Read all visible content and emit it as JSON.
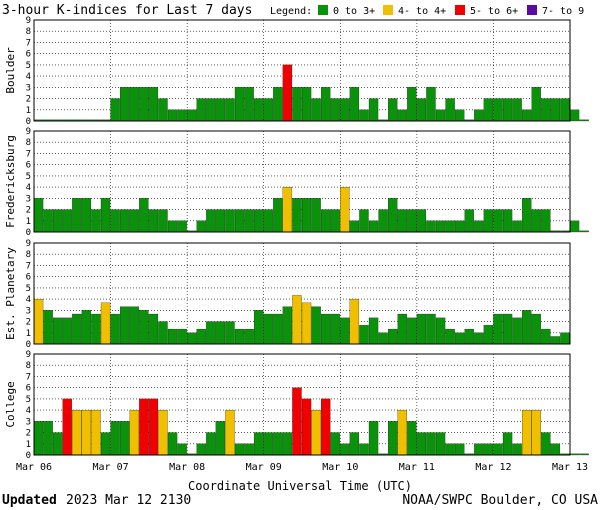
{
  "title": "3-hour K-indices for Last 7 days",
  "legend": {
    "label": "Legend:",
    "items": [
      {
        "label": "0 to 3+",
        "color": "#0A920A"
      },
      {
        "label": "4- to 4+",
        "color": "#F0C000"
      },
      {
        "label": "5- to 6+",
        "color": "#F00000"
      },
      {
        "label": "7- to 9",
        "color": "#5A0AA0"
      }
    ]
  },
  "footer": {
    "updated_label": "Updated",
    "updated_value": "2023 Mar 12 2130",
    "credit": "NOAA/SWPC Boulder, CO USA"
  },
  "chart_data": {
    "type": "bar",
    "xlabel": "Coordinate Universal Time (UTC)",
    "x_ticks": [
      "Mar 06",
      "Mar 07",
      "Mar 08",
      "Mar 09",
      "Mar 10",
      "Mar 11",
      "Mar 12",
      "Mar 13"
    ],
    "ylim": [
      0,
      9
    ],
    "y_ticks": [
      "0",
      "1",
      "2",
      "3",
      "4",
      "5",
      "6",
      "7",
      "8",
      "9"
    ],
    "grid": true,
    "panels": [
      {
        "name": "Boulder",
        "values": [
          0,
          0,
          0,
          0,
          0,
          0,
          0,
          0,
          2,
          3,
          3,
          3,
          3,
          2,
          1,
          1,
          1,
          2,
          2,
          2,
          2,
          3,
          3,
          2,
          2,
          3,
          5,
          3,
          3,
          2,
          3,
          2,
          2,
          3,
          1,
          2,
          0,
          2,
          1,
          3,
          2,
          3,
          1,
          2,
          1,
          0,
          1,
          2,
          2,
          2,
          2,
          1,
          3,
          2,
          2,
          2,
          1,
          0
        ]
      },
      {
        "name": "Fredericksburg",
        "values": [
          3,
          2,
          2,
          2,
          3,
          3,
          2,
          3,
          2,
          2,
          2,
          3,
          2,
          2,
          1,
          1,
          0,
          1,
          2,
          2,
          2,
          2,
          2,
          2,
          2,
          3,
          4,
          3,
          3,
          3,
          2,
          2,
          4,
          1,
          2,
          1,
          2,
          3,
          2,
          2,
          2,
          1,
          1,
          1,
          1,
          2,
          1,
          2,
          2,
          2,
          1,
          3,
          2,
          2,
          0,
          0,
          1,
          0
        ]
      },
      {
        "name": "Est. Planetary",
        "values": [
          4,
          3,
          2.33,
          2.33,
          2.67,
          3,
          2.67,
          3.67,
          2.67,
          3.33,
          3.33,
          3,
          2.67,
          2,
          1.33,
          1.33,
          1,
          1.33,
          2,
          2,
          2,
          1.33,
          1.33,
          3,
          2.67,
          2.67,
          3.33,
          4.33,
          3.67,
          3.33,
          2.67,
          2.67,
          2.33,
          4,
          1.67,
          2.33,
          1,
          1.33,
          2.67,
          2.33,
          2.67,
          2.67,
          2.33,
          1.33,
          1,
          1.33,
          1,
          1.67,
          2.67,
          2.67,
          2.33,
          3,
          2.67,
          1.33,
          0.67,
          1
        ]
      },
      {
        "name": "College",
        "values": [
          3,
          3,
          2,
          5,
          4,
          4,
          4,
          2,
          3,
          3,
          4,
          5,
          5,
          4,
          2,
          1,
          0,
          1,
          2,
          3,
          4,
          1,
          1,
          2,
          2,
          2,
          2,
          6,
          5,
          4,
          5,
          2,
          1,
          2,
          1,
          3,
          0,
          3,
          4,
          3,
          2,
          2,
          2,
          1,
          1,
          0,
          1,
          1,
          1,
          2,
          1,
          4,
          4,
          2,
          1,
          0,
          0,
          0
        ]
      }
    ]
  }
}
